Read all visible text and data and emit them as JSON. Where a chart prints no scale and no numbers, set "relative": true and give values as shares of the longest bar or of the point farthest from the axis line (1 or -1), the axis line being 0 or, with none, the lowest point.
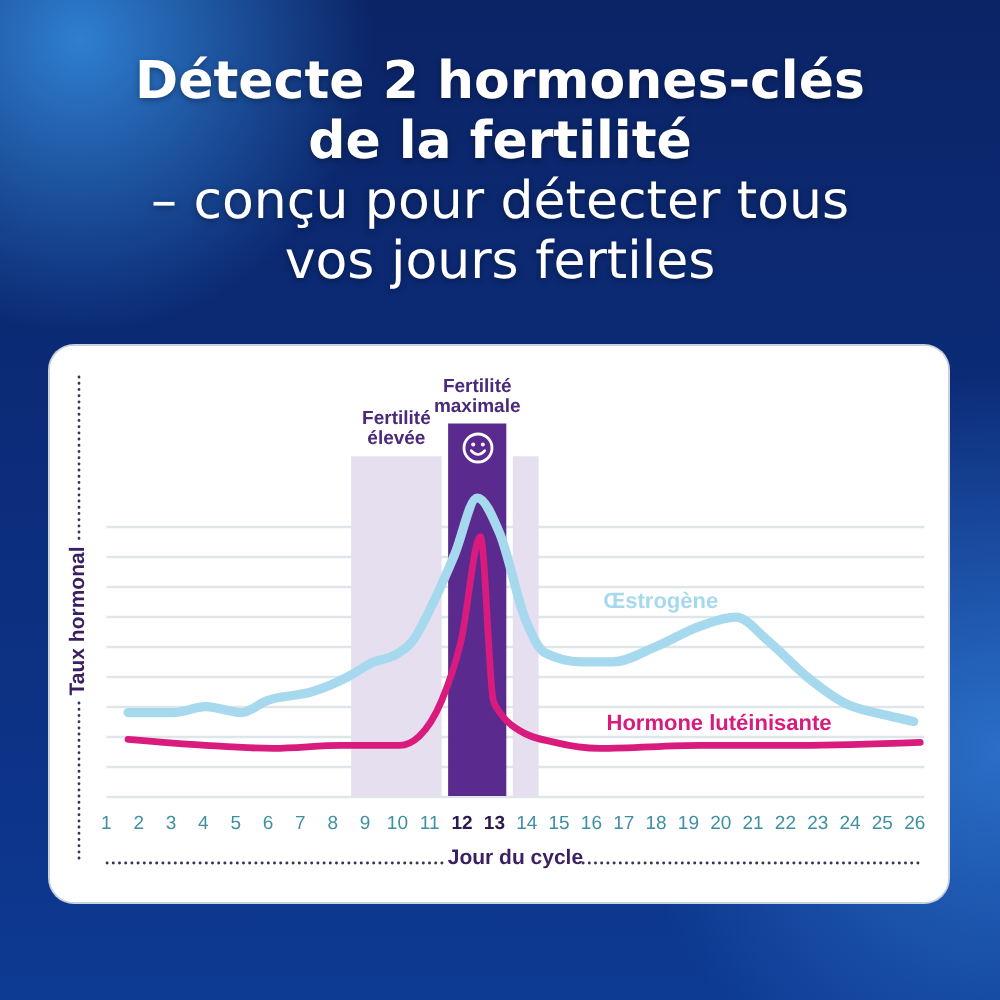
{
  "chart_data": {
    "type": "line",
    "title": "Détecte 2 hormones-clés de la fertilité",
    "subtitle": "– conçu pour détecter tous vos jours fertiles",
    "xlabel": "Jour du cycle",
    "ylabel": "Taux hormonal",
    "relative": true,
    "grid": "y",
    "xlim": [
      1,
      26.3
    ],
    "xticks": [
      1,
      2,
      3,
      4,
      5,
      6,
      7,
      8,
      9,
      10,
      11,
      12,
      13,
      14,
      15,
      16,
      17,
      18,
      19,
      20,
      21,
      22,
      23,
      24,
      25,
      26
    ],
    "series": [
      {
        "name": "Œstrogène",
        "color": "#a6d9ee",
        "x": [
          1.7,
          3.1,
          4.1,
          5.2,
          6.0,
          7.4,
          8.5,
          9.3,
          9.9,
          10.5,
          11.1,
          11.8,
          12.5,
          13.2,
          14.0,
          14.6,
          15.7,
          16.7,
          18.0,
          19.4,
          20.5,
          21.5,
          22.7,
          23.9,
          25.2,
          26.0
        ],
        "values": [
          0.28,
          0.28,
          0.3,
          0.28,
          0.32,
          0.35,
          0.4,
          0.45,
          0.47,
          0.52,
          0.64,
          0.81,
          1,
          0.88,
          0.59,
          0.48,
          0.45,
          0.45,
          0.5,
          0.57,
          0.6,
          0.52,
          0.4,
          0.31,
          0.27,
          0.25
        ]
      },
      {
        "name": "Hormone lutéinisante",
        "color": "#d81b7d",
        "x": [
          1.7,
          4.1,
          6.2,
          8.3,
          10.1,
          10.7,
          11.4,
          12.0,
          12.6,
          13.0,
          13.2,
          13.8,
          14.9,
          16.3,
          19.4,
          22.5,
          26.2
        ],
        "values": [
          0.19,
          0.17,
          0.16,
          0.17,
          0.17,
          0.2,
          0.32,
          0.52,
          0.87,
          0.32,
          0.28,
          0.22,
          0.18,
          0.16,
          0.17,
          0.17,
          0.18
        ]
      }
    ],
    "bands": [
      {
        "axis": "x",
        "from": 8.6,
        "to": 11.4,
        "label": "Fertilité élevée",
        "color": "#e6dff0"
      },
      {
        "axis": "x",
        "from": 11.6,
        "to": 13.4,
        "label": "Fertilité maximale",
        "color": "#5a2a8e"
      },
      {
        "axis": "x",
        "from": 13.6,
        "to": 14.4,
        "color": "#e6dff0"
      }
    ]
  }
}
